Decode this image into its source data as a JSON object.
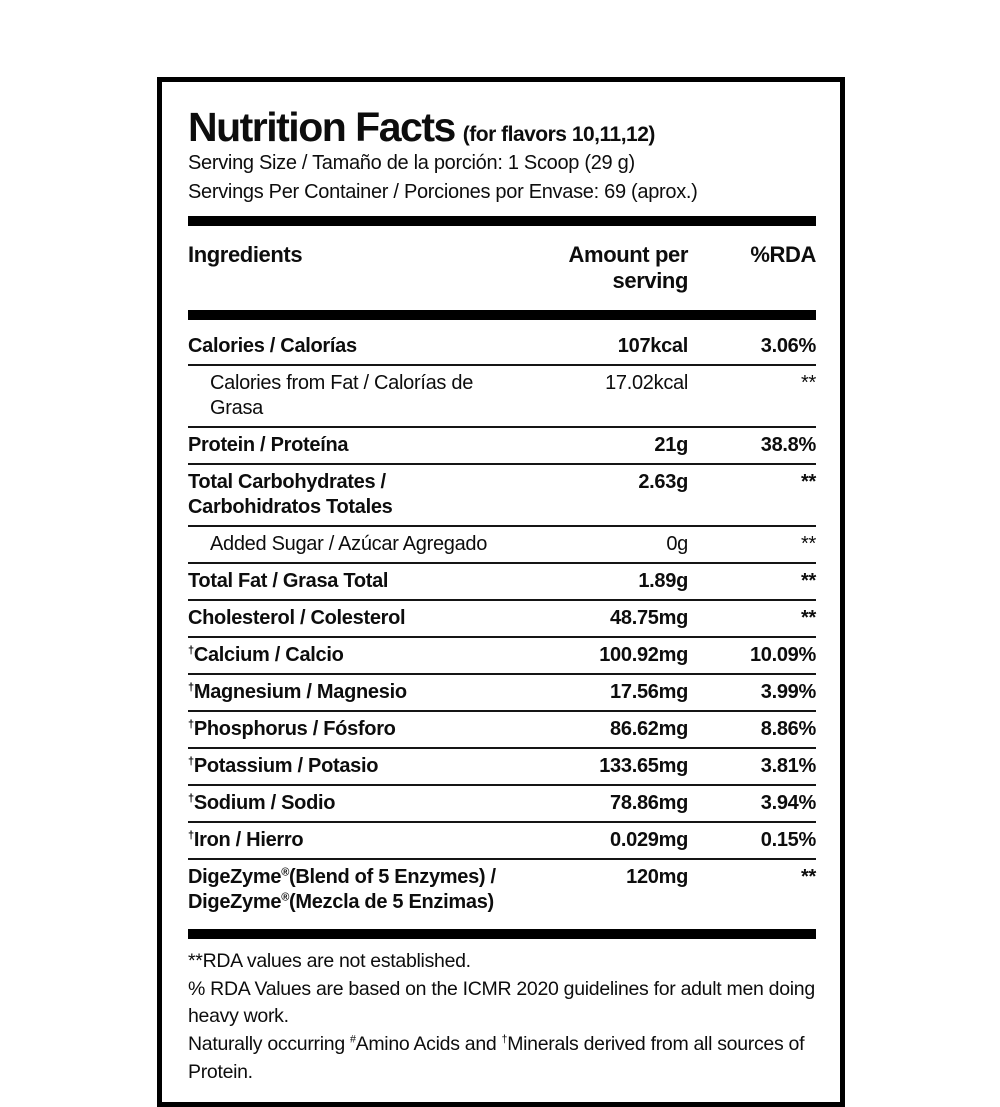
{
  "label": {
    "title": "Nutrition Facts",
    "title_note": "(for flavors 10,11,12)",
    "serving_size": "Serving Size / Tamaño de la porción: 1 Scoop (29 g)",
    "servings_per_container": "Servings Per Container / Porciones por Envase: 69 (aprox.)"
  },
  "table": {
    "headers": {
      "ingredient": "Ingredients",
      "amount": "Amount per serving",
      "rda": "%RDA"
    },
    "rows": [
      {
        "name": "Calories / Calorías",
        "amount": "107kcal",
        "rda": "3.06%",
        "indent": false
      },
      {
        "name": "Calories from Fat / Calorías de Grasa",
        "amount": "17.02kcal",
        "rda": "**",
        "indent": true
      },
      {
        "name": "Protein / Proteína",
        "amount": "21g",
        "rda": "38.8%",
        "indent": false
      },
      {
        "name": "Total Carbohydrates / Carbohidratos Totales",
        "amount": "2.63g",
        "rda": "**",
        "indent": false
      },
      {
        "name": "Added Sugar / Azúcar Agregado",
        "amount": "0g",
        "rda": "**",
        "indent": true
      },
      {
        "name": "Total Fat / Grasa Total",
        "amount": "1.89g",
        "rda": "**",
        "indent": false
      },
      {
        "name": "Cholesterol / Colesterol",
        "amount": "48.75mg",
        "rda": "**",
        "indent": false
      },
      {
        "name": "†Calcium / Calcio",
        "amount": "100.92mg",
        "rda": "10.09%",
        "indent": false
      },
      {
        "name": "†Magnesium / Magnesio",
        "amount": "17.56mg",
        "rda": "3.99%",
        "indent": false
      },
      {
        "name": "†Phosphorus / Fósforo",
        "amount": "86.62mg",
        "rda": "8.86%",
        "indent": false
      },
      {
        "name": "†Potassium / Potasio",
        "amount": "133.65mg",
        "rda": "3.81%",
        "indent": false
      },
      {
        "name": "†Sodium / Sodio",
        "amount": "78.86mg",
        "rda": "3.94%",
        "indent": false
      },
      {
        "name": "†Iron / Hierro",
        "amount": "0.029mg",
        "rda": "0.15%",
        "indent": false
      },
      {
        "name": "DigeZyme®(Blend of 5 Enzymes) /\nDigeZyme®(Mezcla de 5 Enzimas)",
        "amount": "120mg",
        "rda": "**",
        "indent": false
      }
    ]
  },
  "footnotes": [
    "**RDA values are not established.",
    "% RDA Values are based on the ICMR 2020 guidelines for adult men doing heavy work.",
    "Naturally occurring #Amino Acids and †Minerals derived from all sources of Protein."
  ],
  "colors": {
    "text": "#0d0d0d",
    "background": "#ffffff",
    "divider": "#000000"
  }
}
